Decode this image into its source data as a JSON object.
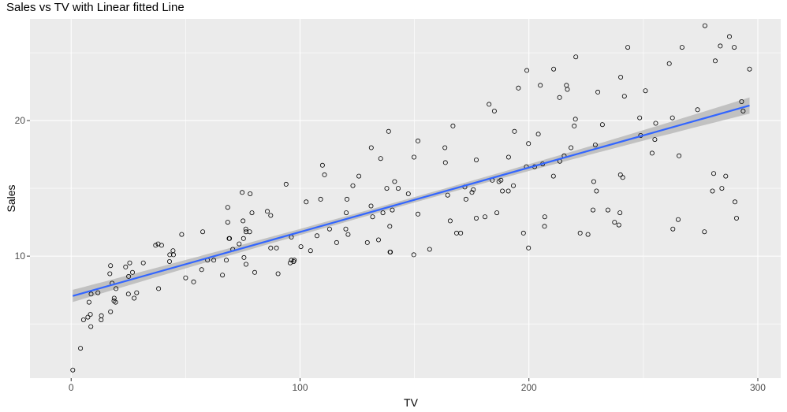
{
  "chart_data": {
    "type": "scatter",
    "title": "Sales vs TV with Linear fitted Line",
    "xlabel": "TV",
    "ylabel": "Sales",
    "xlim": [
      -18,
      310
    ],
    "ylim": [
      1.0,
      27.5
    ],
    "x_ticks": [
      0,
      100,
      200,
      300
    ],
    "y_ticks": [
      10,
      20
    ],
    "grid": true,
    "background": "#ebebeb",
    "point_color": "#000000",
    "line_color": "#3366ff",
    "ribbon_color": "#c2c2c2",
    "fit": {
      "intercept": 7.03,
      "slope": 0.0475,
      "se_start": 0.45,
      "se_mid": 0.2,
      "se_end": 0.6
    },
    "points": [
      [
        0.7,
        1.6
      ],
      [
        4.1,
        3.2
      ],
      [
        5.4,
        5.3
      ],
      [
        7.3,
        5.5
      ],
      [
        8.4,
        5.7
      ],
      [
        8.6,
        4.8
      ],
      [
        7.8,
        6.6
      ],
      [
        8.7,
        7.2
      ],
      [
        11.7,
        7.3
      ],
      [
        13.1,
        5.3
      ],
      [
        13.2,
        5.6
      ],
      [
        16.9,
        8.7
      ],
      [
        17.2,
        9.3
      ],
      [
        17.9,
        8.0
      ],
      [
        17.2,
        5.9
      ],
      [
        18.7,
        6.7
      ],
      [
        19.4,
        6.6
      ],
      [
        19.6,
        7.6
      ],
      [
        18.8,
        6.9
      ],
      [
        23.8,
        9.2
      ],
      [
        25.1,
        8.5
      ],
      [
        25.6,
        9.5
      ],
      [
        25.0,
        7.2
      ],
      [
        26.8,
        8.8
      ],
      [
        27.5,
        6.9
      ],
      [
        28.6,
        7.3
      ],
      [
        31.5,
        9.5
      ],
      [
        36.9,
        10.8
      ],
      [
        38.0,
        10.9
      ],
      [
        38.2,
        7.6
      ],
      [
        39.5,
        10.8
      ],
      [
        43.0,
        9.6
      ],
      [
        43.1,
        10.1
      ],
      [
        44.5,
        10.4
      ],
      [
        44.7,
        10.1
      ],
      [
        48.3,
        11.6
      ],
      [
        50.0,
        8.4
      ],
      [
        53.5,
        8.1
      ],
      [
        57.5,
        11.8
      ],
      [
        59.6,
        9.7
      ],
      [
        62.3,
        9.7
      ],
      [
        66.1,
        8.6
      ],
      [
        67.8,
        9.7
      ],
      [
        68.4,
        12.5
      ],
      [
        68.4,
        13.6
      ],
      [
        69.0,
        11.3
      ],
      [
        69.2,
        11.3
      ],
      [
        70.6,
        10.5
      ],
      [
        73.4,
        10.9
      ],
      [
        74.7,
        14.7
      ],
      [
        75.1,
        12.6
      ],
      [
        75.3,
        11.3
      ],
      [
        75.5,
        9.9
      ],
      [
        76.3,
        12.0
      ],
      [
        76.4,
        9.4
      ],
      [
        76.4,
        11.8
      ],
      [
        78.2,
        14.6
      ],
      [
        80.2,
        8.8
      ],
      [
        85.7,
        13.3
      ],
      [
        87.2,
        10.6
      ],
      [
        87.2,
        13.0
      ],
      [
        89.7,
        10.6
      ],
      [
        90.4,
        8.7
      ],
      [
        93.9,
        15.3
      ],
      [
        95.7,
        9.5
      ],
      [
        96.2,
        11.4
      ],
      [
        96.2,
        9.7
      ],
      [
        97.2,
        9.6
      ],
      [
        97.5,
        9.7
      ],
      [
        100.4,
        10.7
      ],
      [
        102.7,
        14.0
      ],
      [
        104.6,
        10.4
      ],
      [
        107.4,
        11.5
      ],
      [
        109.8,
        16.7
      ],
      [
        110.7,
        16.0
      ],
      [
        112.9,
        12.0
      ],
      [
        116.0,
        11.0
      ],
      [
        120.2,
        13.2
      ],
      [
        120.5,
        14.2
      ],
      [
        121.0,
        11.6
      ],
      [
        123.1,
        15.2
      ],
      [
        125.7,
        15.9
      ],
      [
        129.4,
        11.0
      ],
      [
        131.1,
        18.0
      ],
      [
        131.7,
        12.9
      ],
      [
        134.3,
        11.2
      ],
      [
        136.2,
        13.2
      ],
      [
        137.9,
        15.0
      ],
      [
        139.2,
        12.2
      ],
      [
        139.3,
        10.3
      ],
      [
        139.5,
        10.3
      ],
      [
        135.2,
        17.2
      ],
      [
        138.7,
        19.2
      ],
      [
        140.3,
        13.4
      ],
      [
        141.3,
        15.5
      ],
      [
        142.9,
        15.0
      ],
      [
        147.3,
        14.6
      ],
      [
        149.7,
        10.1
      ],
      [
        149.8,
        17.3
      ],
      [
        151.5,
        18.5
      ],
      [
        156.6,
        10.5
      ],
      [
        163.3,
        18.0
      ],
      [
        163.5,
        16.9
      ],
      [
        164.5,
        14.5
      ],
      [
        165.6,
        12.6
      ],
      [
        166.8,
        19.6
      ],
      [
        168.4,
        11.7
      ],
      [
        170.2,
        11.7
      ],
      [
        172.5,
        14.2
      ],
      [
        175.1,
        14.7
      ],
      [
        175.7,
        14.9
      ],
      [
        177.0,
        12.8
      ],
      [
        177.0,
        17.1
      ],
      [
        180.8,
        12.9
      ],
      [
        182.6,
        21.2
      ],
      [
        184.9,
        20.7
      ],
      [
        186.9,
        15.5
      ],
      [
        187.8,
        15.6
      ],
      [
        188.4,
        14.8
      ],
      [
        191.1,
        17.3
      ],
      [
        193.2,
        15.2
      ],
      [
        193.7,
        19.2
      ],
      [
        195.4,
        22.4
      ],
      [
        197.6,
        11.7
      ],
      [
        198.9,
        16.6
      ],
      [
        199.1,
        23.7
      ],
      [
        199.8,
        18.3
      ],
      [
        199.8,
        10.6
      ],
      [
        202.5,
        16.6
      ],
      [
        204.1,
        19.0
      ],
      [
        205.0,
        22.6
      ],
      [
        206.8,
        12.2
      ],
      [
        206.9,
        12.9
      ],
      [
        210.7,
        15.9
      ],
      [
        210.8,
        23.8
      ],
      [
        213.4,
        21.7
      ],
      [
        213.5,
        17.0
      ],
      [
        215.4,
        17.4
      ],
      [
        216.4,
        22.6
      ],
      [
        216.8,
        22.3
      ],
      [
        218.4,
        18.0
      ],
      [
        219.8,
        19.6
      ],
      [
        220.3,
        20.1
      ],
      [
        220.5,
        24.7
      ],
      [
        222.4,
        11.7
      ],
      [
        225.8,
        11.6
      ],
      [
        228.0,
        13.4
      ],
      [
        228.3,
        15.5
      ],
      [
        229.5,
        14.8
      ],
      [
        230.1,
        22.1
      ],
      [
        232.1,
        19.7
      ],
      [
        234.5,
        13.4
      ],
      [
        237.4,
        12.5
      ],
      [
        239.3,
        12.3
      ],
      [
        239.8,
        13.2
      ],
      [
        240.1,
        23.2
      ],
      [
        241.7,
        21.8
      ],
      [
        243.2,
        25.4
      ],
      [
        248.4,
        20.2
      ],
      [
        248.8,
        18.9
      ],
      [
        250.9,
        22.2
      ],
      [
        253.8,
        17.6
      ],
      [
        255.4,
        19.8
      ],
      [
        261.3,
        24.2
      ],
      [
        262.7,
        20.2
      ],
      [
        262.9,
        12.0
      ],
      [
        265.2,
        12.7
      ],
      [
        265.6,
        17.4
      ],
      [
        266.9,
        25.4
      ],
      [
        273.7,
        20.8
      ],
      [
        276.7,
        11.8
      ],
      [
        276.9,
        27.0
      ],
      [
        280.2,
        14.8
      ],
      [
        280.7,
        16.1
      ],
      [
        281.4,
        24.4
      ],
      [
        283.6,
        25.5
      ],
      [
        284.3,
        15.0
      ],
      [
        286.0,
        15.9
      ],
      [
        287.6,
        26.2
      ],
      [
        289.7,
        25.4
      ],
      [
        290.7,
        12.8
      ],
      [
        292.9,
        21.4
      ],
      [
        293.6,
        20.7
      ],
      [
        296.4,
        23.8
      ],
      [
        290.0,
        14.0
      ],
      [
        184.0,
        15.6
      ],
      [
        186.0,
        13.2
      ],
      [
        57.0,
        9.0
      ],
      [
        120.0,
        12.0
      ],
      [
        151.5,
        13.1
      ],
      [
        191.0,
        14.8
      ],
      [
        79.0,
        13.2
      ],
      [
        78.0,
        11.8
      ],
      [
        109.0,
        14.2
      ],
      [
        131.0,
        13.7
      ],
      [
        172.0,
        15.1
      ],
      [
        206.0,
        16.8
      ],
      [
        229.0,
        18.2
      ],
      [
        240.0,
        16.0
      ],
      [
        241.0,
        15.8
      ],
      [
        255.0,
        18.6
      ]
    ]
  }
}
